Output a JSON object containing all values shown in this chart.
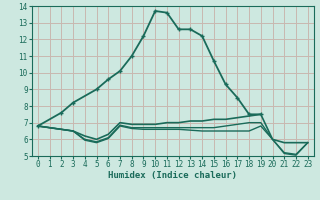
{
  "xlabel": "Humidex (Indice chaleur)",
  "background_color": "#cde8e0",
  "grid_color": "#b8d8cf",
  "line_color": "#1a6b5a",
  "xlim": [
    -0.5,
    23.5
  ],
  "ylim": [
    5,
    14
  ],
  "xticks": [
    0,
    1,
    2,
    3,
    4,
    5,
    6,
    7,
    8,
    9,
    10,
    11,
    12,
    13,
    14,
    15,
    16,
    17,
    18,
    19,
    20,
    21,
    22,
    23
  ],
  "yticks": [
    5,
    6,
    7,
    8,
    9,
    10,
    11,
    12,
    13,
    14
  ],
  "lines": [
    {
      "x": [
        0,
        2,
        3,
        5,
        6,
        7,
        8,
        9,
        10,
        11,
        12,
        13,
        14,
        15,
        16,
        17,
        18,
        19
      ],
      "y": [
        6.8,
        7.6,
        8.2,
        9.0,
        9.6,
        10.1,
        11.0,
        12.2,
        13.7,
        13.6,
        12.6,
        12.6,
        12.2,
        10.7,
        9.3,
        8.5,
        7.5,
        7.5
      ],
      "marker": "+",
      "lw": 1.3
    },
    {
      "x": [
        0,
        3,
        4,
        5,
        6,
        7,
        8,
        9,
        10,
        11,
        12,
        13,
        14,
        15,
        16,
        17,
        18,
        19,
        20,
        21,
        22,
        23
      ],
      "y": [
        6.8,
        6.5,
        6.2,
        6.0,
        6.3,
        7.0,
        6.9,
        6.9,
        6.9,
        7.0,
        7.0,
        7.1,
        7.1,
        7.2,
        7.2,
        7.3,
        7.4,
        7.5,
        6.0,
        5.8,
        5.8,
        5.8
      ],
      "marker": null,
      "lw": 1.2
    },
    {
      "x": [
        0,
        3,
        4,
        5,
        6,
        7,
        8,
        9,
        10,
        11,
        12,
        13,
        14,
        15,
        16,
        17,
        18,
        19,
        20,
        21,
        22,
        23
      ],
      "y": [
        6.8,
        6.5,
        6.0,
        5.85,
        6.1,
        6.85,
        6.7,
        6.7,
        6.7,
        6.7,
        6.7,
        6.7,
        6.7,
        6.7,
        6.8,
        6.9,
        7.0,
        7.0,
        6.0,
        5.2,
        5.1,
        5.8
      ],
      "marker": null,
      "lw": 1.0
    },
    {
      "x": [
        0,
        3,
        4,
        5,
        6,
        7,
        8,
        9,
        10,
        11,
        12,
        13,
        14,
        15,
        16,
        17,
        18,
        19,
        20,
        21,
        22,
        23
      ],
      "y": [
        6.8,
        6.5,
        5.95,
        5.8,
        6.05,
        6.8,
        6.65,
        6.6,
        6.6,
        6.6,
        6.6,
        6.55,
        6.5,
        6.5,
        6.5,
        6.5,
        6.5,
        6.8,
        6.0,
        5.15,
        5.05,
        5.8
      ],
      "marker": null,
      "lw": 1.0
    }
  ]
}
